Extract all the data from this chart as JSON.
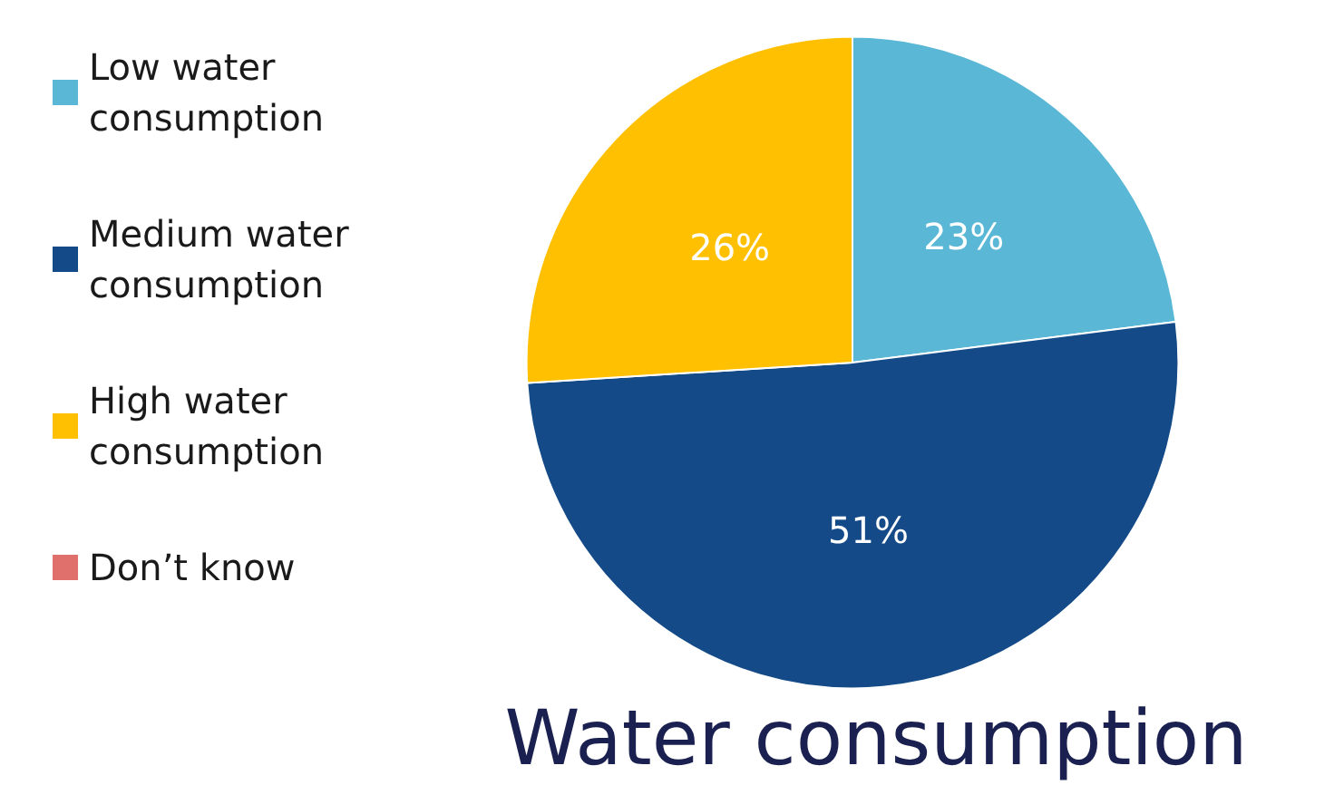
{
  "chart_data": {
    "type": "pie",
    "title": "Water consumption",
    "categories": [
      "Low water consumption",
      "Medium water consumption",
      "High water consumption",
      "Don’t know"
    ],
    "values": [
      23,
      51,
      26,
      0
    ],
    "colors": [
      "#5ab7d5",
      "#134a87",
      "#fec000",
      "#e0706c"
    ],
    "value_labels": [
      "23%",
      "51%",
      "26%",
      null
    ],
    "legend": "left"
  }
}
